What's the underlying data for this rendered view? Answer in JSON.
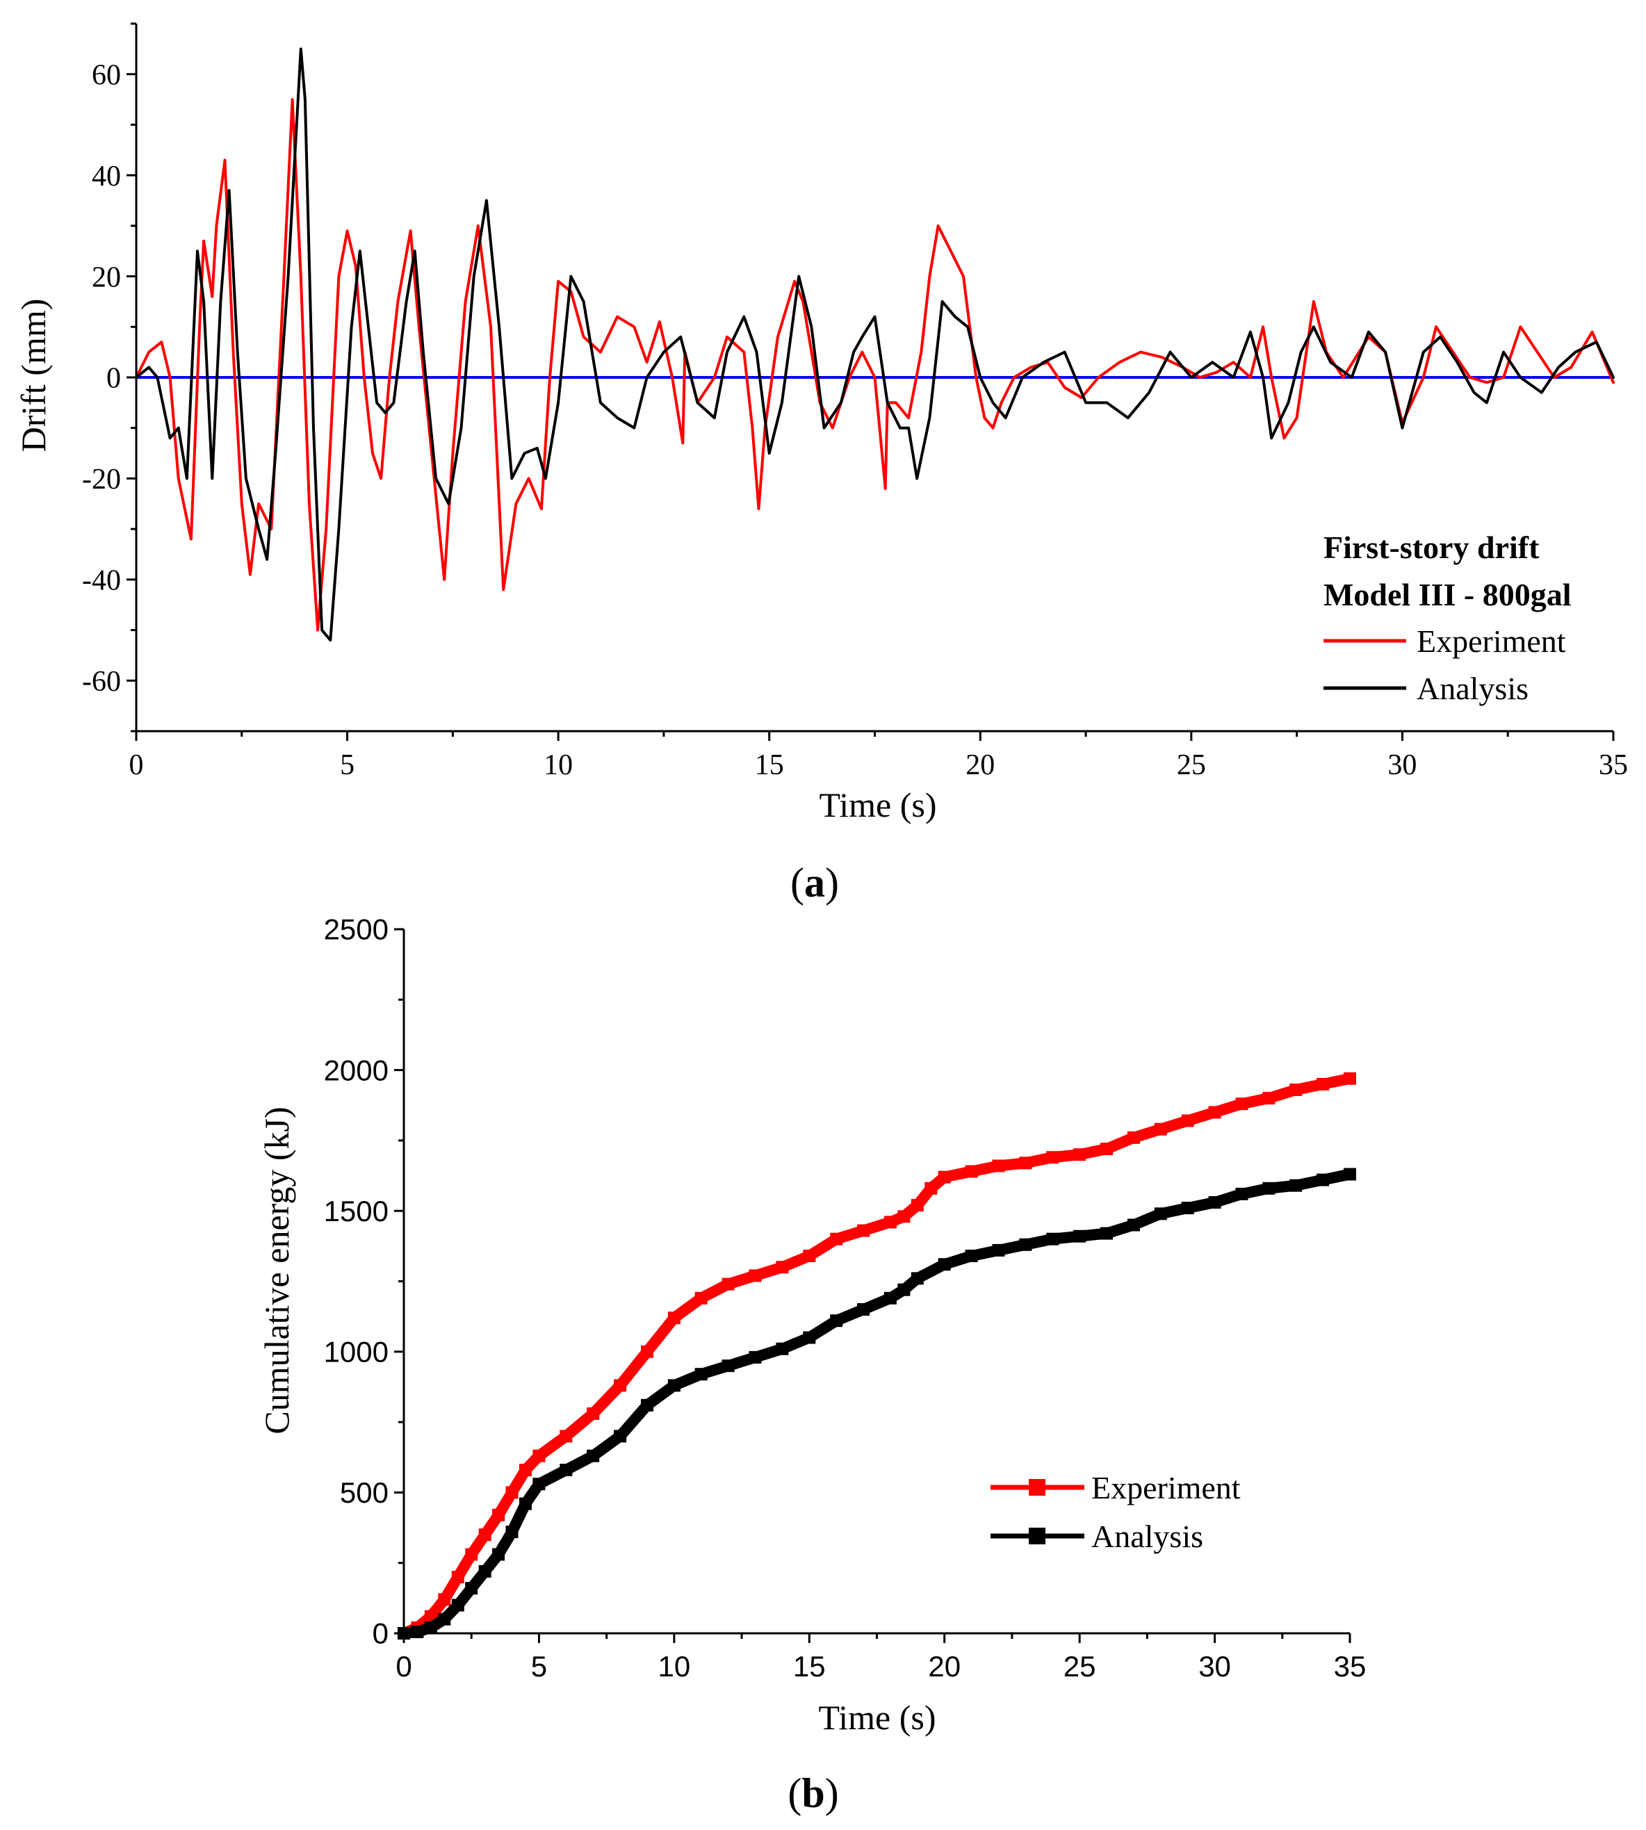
{
  "chart_data": [
    {
      "type": "line",
      "panel_label": "a",
      "xlabel": "Time (s)",
      "ylabel": "Drift (mm)",
      "xlim": [
        0,
        35
      ],
      "ylim": [
        -70,
        70
      ],
      "xticks": [
        "0",
        "5",
        "10",
        "15",
        "20",
        "25",
        "30",
        "35"
      ],
      "yticks": [
        "-60",
        "-40",
        "-20",
        "0",
        "20",
        "40",
        "60"
      ],
      "xtick_values": [
        0,
        5,
        10,
        15,
        20,
        25,
        30,
        35
      ],
      "ytick_values": [
        -60,
        -40,
        -20,
        0,
        20,
        40,
        60
      ],
      "legend_title": [
        "First-story drift",
        "Model III - 800gal"
      ],
      "legend_position": "bottom-right",
      "baseline": {
        "y": 0,
        "color": "#0000ff"
      },
      "series": [
        {
          "name": "Experiment",
          "color": "#ff0000",
          "x": [
            0,
            0.3,
            0.6,
            0.8,
            1.0,
            1.3,
            1.5,
            1.6,
            1.8,
            1.9,
            2.1,
            2.3,
            2.5,
            2.7,
            2.9,
            3.2,
            3.5,
            3.7,
            3.9,
            4.1,
            4.3,
            4.5,
            4.8,
            5.0,
            5.2,
            5.4,
            5.6,
            5.8,
            6.0,
            6.2,
            6.5,
            6.7,
            7.0,
            7.3,
            7.5,
            7.8,
            8.1,
            8.4,
            8.7,
            9.0,
            9.3,
            9.6,
            9.8,
            10.0,
            10.3,
            10.6,
            11.0,
            11.4,
            11.8,
            12.1,
            12.4,
            12.7,
            12.95,
            13.0,
            13.3,
            13.7,
            14.0,
            14.4,
            14.6,
            14.75,
            14.9,
            15.2,
            15.6,
            15.8,
            16.2,
            16.5,
            16.9,
            17.2,
            17.5,
            17.75,
            17.8,
            18.0,
            18.3,
            18.6,
            18.8,
            19.0,
            19.3,
            19.6,
            19.9,
            20.1,
            20.3,
            20.5,
            20.8,
            21.2,
            21.6,
            22.0,
            22.4,
            22.8,
            23.3,
            23.8,
            24.3,
            24.8,
            25.2,
            25.6,
            26.0,
            26.4,
            26.7,
            26.9,
            27.2,
            27.5,
            27.9,
            28.2,
            28.6,
            29.2,
            29.6,
            30.0,
            30.5,
            30.8,
            31.2,
            31.6,
            32.0,
            32.4,
            32.8,
            33.2,
            33.6,
            34.0,
            34.5,
            34.7,
            35.0
          ],
          "y": [
            0,
            5,
            7,
            0,
            -20,
            -32,
            10,
            27,
            16,
            30,
            43,
            5,
            -25,
            -39,
            -25,
            -30,
            20,
            55,
            20,
            -25,
            -50,
            -30,
            20,
            29,
            22,
            0,
            -15,
            -20,
            0,
            15,
            29,
            10,
            -15,
            -40,
            -15,
            15,
            30,
            10,
            -42,
            -25,
            -20,
            -26,
            0,
            19,
            17,
            8,
            5,
            12,
            10,
            3,
            11,
            0,
            -13,
            5,
            -5,
            0,
            8,
            5,
            -10,
            -26,
            -10,
            8,
            19,
            15,
            -5,
            -10,
            0,
            5,
            0,
            -22,
            -5,
            -5,
            -8,
            5,
            20,
            30,
            25,
            20,
            0,
            -8,
            -10,
            -5,
            0,
            2,
            3,
            -2,
            -4,
            0,
            3,
            5,
            4,
            2,
            0,
            1,
            3,
            0,
            10,
            0,
            -12,
            -8,
            15,
            5,
            0,
            8,
            5,
            -9,
            0,
            10,
            5,
            0,
            -1,
            0,
            10,
            5,
            0,
            2,
            9,
            5,
            -1
          ]
        },
        {
          "name": "Analysis",
          "color": "#000000",
          "x": [
            0,
            0.3,
            0.5,
            0.8,
            1.0,
            1.2,
            1.45,
            1.6,
            1.8,
            2.0,
            2.2,
            2.4,
            2.6,
            2.9,
            3.1,
            3.3,
            3.6,
            3.9,
            4.0,
            4.2,
            4.4,
            4.6,
            4.8,
            5.1,
            5.3,
            5.5,
            5.7,
            5.9,
            6.1,
            6.4,
            6.6,
            6.8,
            7.1,
            7.4,
            7.7,
            8.0,
            8.3,
            8.6,
            8.9,
            9.2,
            9.5,
            9.7,
            10.0,
            10.3,
            10.6,
            11.0,
            11.4,
            11.8,
            12.1,
            12.5,
            12.9,
            13.3,
            13.7,
            14.0,
            14.4,
            14.7,
            15.0,
            15.3,
            15.7,
            16.0,
            16.3,
            16.7,
            17.0,
            17.2,
            17.5,
            17.8,
            18.1,
            18.3,
            18.5,
            18.8,
            19.1,
            19.4,
            19.7,
            20.0,
            20.3,
            20.6,
            21.0,
            21.5,
            22.0,
            22.5,
            23.0,
            23.5,
            24.0,
            24.5,
            25.0,
            25.5,
            26.0,
            26.4,
            26.7,
            26.9,
            27.3,
            27.6,
            27.9,
            28.3,
            28.8,
            29.2,
            29.6,
            30.0,
            30.5,
            30.9,
            31.3,
            31.7,
            32.0,
            32.4,
            32.8,
            33.3,
            33.7,
            34.1,
            34.6,
            35.0
          ],
          "y": [
            0,
            2,
            0,
            -12,
            -10,
            -20,
            25,
            15,
            -20,
            15,
            37,
            5,
            -20,
            -30,
            -36,
            -15,
            20,
            65,
            55,
            -10,
            -50,
            -52,
            -30,
            10,
            25,
            10,
            -5,
            -7,
            -5,
            15,
            25,
            5,
            -20,
            -25,
            -10,
            20,
            35,
            10,
            -20,
            -15,
            -14,
            -20,
            -5,
            20,
            15,
            -5,
            -8,
            -10,
            0,
            5,
            8,
            -5,
            -8,
            5,
            12,
            5,
            -15,
            -5,
            20,
            10,
            -10,
            -5,
            5,
            8,
            12,
            -5,
            -10,
            -10,
            -20,
            -8,
            15,
            12,
            10,
            0,
            -5,
            -8,
            0,
            3,
            5,
            -5,
            -5,
            -8,
            -3,
            5,
            0,
            3,
            0,
            9,
            0,
            -12,
            -5,
            5,
            10,
            3,
            0,
            9,
            5,
            -10,
            5,
            8,
            3,
            -3,
            -5,
            5,
            0,
            -3,
            2,
            5,
            7,
            0
          ]
        }
      ]
    },
    {
      "type": "line",
      "panel_label": "b",
      "xlabel": "Time (s)",
      "ylabel": "Cumulative energy (kJ)",
      "xlim": [
        0,
        35
      ],
      "ylim": [
        0,
        2500
      ],
      "xticks": [
        "0",
        "5",
        "10",
        "15",
        "20",
        "25",
        "30",
        "35"
      ],
      "yticks": [
        "0",
        "500",
        "1000",
        "1500",
        "2000",
        "2500"
      ],
      "xtick_values": [
        0,
        5,
        10,
        15,
        20,
        25,
        30,
        35
      ],
      "ytick_values": [
        0,
        500,
        1000,
        1500,
        2000,
        2500
      ],
      "legend_position": "center-right",
      "series": [
        {
          "name": "Experiment",
          "color": "#ff0000",
          "x": [
            0,
            0.5,
            1,
            1.5,
            2,
            2.5,
            3,
            3.5,
            4,
            4.5,
            5,
            6,
            7,
            8,
            9,
            10,
            11,
            12,
            13,
            14,
            15,
            16,
            17,
            18,
            18.5,
            19,
            19.5,
            20,
            21,
            22,
            23,
            24,
            25,
            26,
            27,
            28,
            29,
            30,
            31,
            32,
            33,
            34,
            35
          ],
          "y": [
            0,
            20,
            60,
            120,
            200,
            280,
            350,
            420,
            500,
            580,
            630,
            700,
            780,
            880,
            1000,
            1120,
            1190,
            1240,
            1270,
            1300,
            1340,
            1400,
            1430,
            1460,
            1480,
            1520,
            1580,
            1620,
            1640,
            1660,
            1670,
            1690,
            1700,
            1720,
            1760,
            1790,
            1820,
            1850,
            1880,
            1900,
            1930,
            1950,
            1970
          ]
        },
        {
          "name": "Analysis",
          "color": "#000000",
          "x": [
            0,
            0.5,
            1,
            1.5,
            2,
            2.5,
            3,
            3.5,
            4,
            4.5,
            5,
            6,
            7,
            8,
            9,
            10,
            11,
            12,
            13,
            14,
            15,
            16,
            17,
            18,
            18.5,
            19,
            20,
            21,
            22,
            23,
            24,
            25,
            26,
            27,
            28,
            29,
            30,
            31,
            32,
            33,
            34,
            35
          ],
          "y": [
            0,
            5,
            20,
            50,
            100,
            160,
            220,
            280,
            360,
            460,
            530,
            580,
            630,
            700,
            810,
            880,
            920,
            950,
            980,
            1010,
            1050,
            1110,
            1150,
            1190,
            1220,
            1260,
            1310,
            1340,
            1360,
            1380,
            1400,
            1410,
            1420,
            1450,
            1490,
            1510,
            1530,
            1560,
            1580,
            1590,
            1610,
            1630
          ]
        }
      ]
    }
  ]
}
